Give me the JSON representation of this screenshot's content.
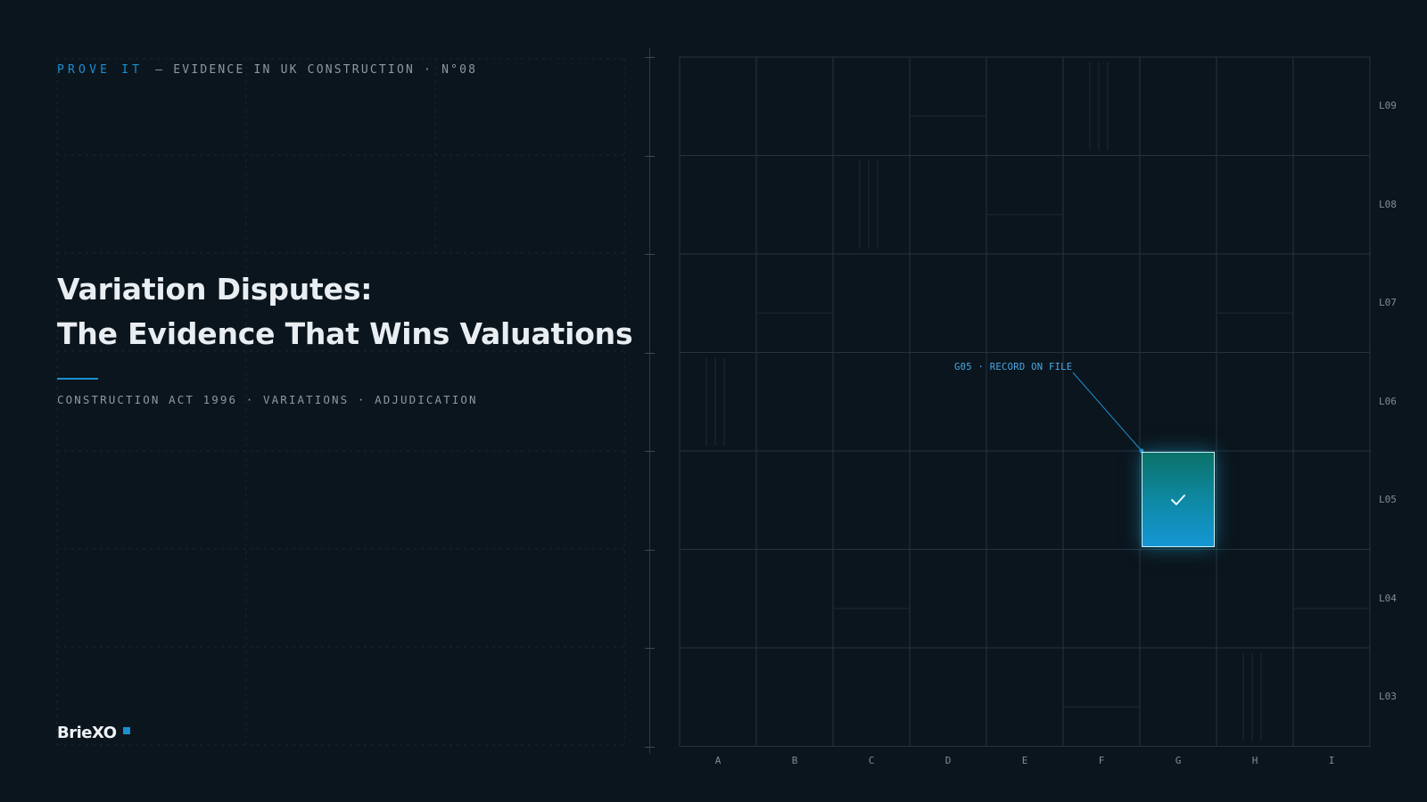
{
  "header": {
    "kicker_accent": "PROVE IT",
    "kicker_rest": "— EVIDENCE IN UK CONSTRUCTION · N°08"
  },
  "hero": {
    "title_line1": "Variation Disputes:",
    "title_line2": "The Evidence That Wins Valuations",
    "subline": "CONSTRUCTION ACT 1996 · VARIATIONS · ADJUDICATION"
  },
  "brand": {
    "name": "BrieXO"
  },
  "grid": {
    "columns": [
      "A",
      "B",
      "C",
      "D",
      "E",
      "F",
      "G",
      "H",
      "I"
    ],
    "rows": [
      "L09",
      "L08",
      "L07",
      "L06",
      "L05",
      "L04",
      "L03"
    ],
    "highlight": {
      "column": "G",
      "row": "L05",
      "icon": "check-icon"
    },
    "callout": "G05 · RECORD ON FILE"
  },
  "colors": {
    "background": "#0b151d",
    "accent": "#1a8fd0",
    "callout": "#4aa8e6",
    "highlight_top": "#0b7268",
    "highlight_bottom": "#1596d4"
  }
}
